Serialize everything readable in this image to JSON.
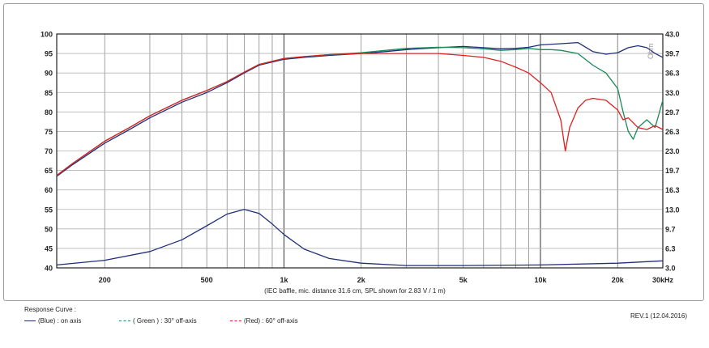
{
  "chart_data": {
    "type": "line",
    "title": "",
    "xscale": "log",
    "xlim": [
      130,
      30000
    ],
    "ylim_left": [
      40,
      100
    ],
    "ylim_right": [
      3.0,
      43.0
    ],
    "grid": true,
    "x_tick_labels": [
      "200",
      "500",
      "1k",
      "2k",
      "5k",
      "10k",
      "20k",
      "30kHz"
    ],
    "y_tick_labels_left": [
      "100",
      "95",
      "90",
      "85",
      "80",
      "75",
      "70",
      "65",
      "60",
      "55",
      "50",
      "45",
      "40"
    ],
    "y_tick_labels_right": [
      "43.0",
      "39.7",
      "36.3",
      "33.0",
      "29.7",
      "26.3",
      "23.0",
      "19.7",
      "16.3",
      "13.0",
      "9.7",
      "6.3",
      "3.0"
    ],
    "right_axis_unit": "Ohm",
    "caption": "(IEC baffle, mic. distance 31.6 cm, SPL shown for 2.83 V / 1 m)",
    "series": [
      {
        "name": "(Blue)  : on axis",
        "color": "#1f2f7a",
        "x": [
          130,
          150,
          200,
          250,
          300,
          400,
          500,
          600,
          700,
          800,
          1000,
          1200,
          1500,
          2000,
          2500,
          3000,
          4000,
          5000,
          6000,
          7000,
          8000,
          9000,
          10000,
          12000,
          14000,
          16000,
          18000,
          20000,
          22000,
          24000,
          26000,
          28000,
          30000
        ],
        "values": [
          63.5,
          66.5,
          72,
          75.5,
          78.5,
          82.5,
          85,
          87.5,
          90,
          92,
          93.5,
          94,
          94.5,
          95,
          95.5,
          96,
          96.5,
          96.8,
          96.5,
          96.2,
          96.3,
          96.6,
          97.2,
          97.5,
          97.8,
          95.5,
          94.8,
          95.2,
          96.5,
          97,
          96.5,
          95,
          94
        ]
      },
      {
        "name": "( Green ) : 30° off-axis",
        "color": "#1a8a5a",
        "x": [
          130,
          150,
          200,
          250,
          300,
          400,
          500,
          600,
          700,
          800,
          1000,
          1200,
          1500,
          2000,
          2500,
          3000,
          4000,
          5000,
          6000,
          7000,
          8000,
          9000,
          10000,
          11000,
          12000,
          14000,
          16000,
          18000,
          20000,
          21000,
          22000,
          23000,
          24000,
          26000,
          28000,
          30000
        ],
        "values": [
          63.7,
          66.8,
          72.5,
          76,
          79,
          83,
          85.5,
          87.8,
          90.2,
          92.2,
          93.7,
          94.2,
          94.7,
          95.2,
          95.8,
          96.3,
          96.6,
          96.5,
          96.2,
          95.8,
          96,
          96.3,
          96,
          96,
          95.8,
          95,
          92,
          90,
          86,
          80,
          75,
          73,
          76,
          78,
          76,
          83
        ]
      },
      {
        "name": "(Red) : 60° off-axis",
        "color": "#e02020",
        "x": [
          130,
          150,
          200,
          250,
          300,
          400,
          500,
          600,
          700,
          800,
          1000,
          1200,
          1500,
          2000,
          2500,
          3000,
          4000,
          5000,
          6000,
          7000,
          8000,
          9000,
          10000,
          11000,
          12000,
          12500,
          13000,
          14000,
          15000,
          16000,
          18000,
          20000,
          21000,
          22000,
          24000,
          26000,
          28000,
          30000
        ],
        "values": [
          63.7,
          66.8,
          72.5,
          76,
          79,
          83,
          85.5,
          87.8,
          90.2,
          92.2,
          93.7,
          94.2,
          94.7,
          95,
          95,
          95,
          95,
          94.5,
          94,
          93,
          91.5,
          90,
          87.5,
          85,
          78,
          70,
          76,
          81,
          83,
          83.5,
          83,
          80.5,
          78,
          78.5,
          76,
          75.5,
          76.5,
          75.5
        ]
      },
      {
        "name": "Impedance",
        "axis": "right",
        "color": "#1f2f7a",
        "x": [
          130,
          200,
          300,
          400,
          500,
          600,
          700,
          800,
          900,
          1000,
          1200,
          1500,
          2000,
          3000,
          5000,
          10000,
          20000,
          30000
        ],
        "values": [
          3.5,
          4.3,
          5.8,
          7.8,
          10.2,
          12.2,
          13.0,
          12.3,
          10.5,
          8.7,
          6.2,
          4.6,
          3.8,
          3.4,
          3.4,
          3.5,
          3.8,
          4.2
        ]
      }
    ]
  },
  "legend": {
    "title": "Response Curve :",
    "blue_label": "(Blue)  : on axis",
    "green_label": "( Green ) : 30° off-axis",
    "red_label": "(Red) : 60° off-axis"
  },
  "revision": "REV.1 (12.04.2016)"
}
